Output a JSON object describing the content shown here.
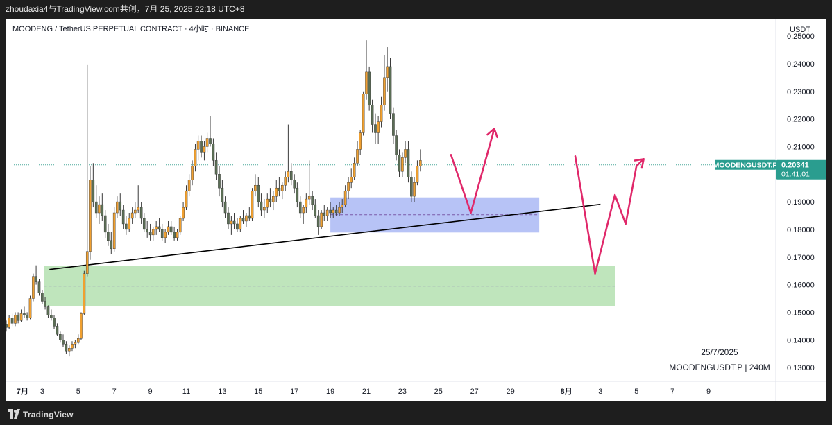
{
  "header": {
    "title": "zhoudaxia4与TradingView.com共创，7月 25, 2025 22:18 UTC+8"
  },
  "footer": {
    "brand": "TradingView"
  },
  "chart_data": {
    "type": "candlestick",
    "title": "MOODENG / TetherUS PERPETUAL CONTRACT · 4小时 · BINANCE",
    "price_unit": "USDT",
    "ylim": [
      0.125,
      0.2563
    ],
    "y_ticks": [
      "0.25000",
      "0.24000",
      "0.23000",
      "0.22000",
      "0.21000",
      "0.20000",
      "0.19000",
      "0.18000",
      "0.17000",
      "0.16000",
      "0.15000",
      "0.14000",
      "0.13000"
    ],
    "x_ticks": [
      {
        "label": "7月",
        "day": 0.9
      },
      {
        "label": "3",
        "day": 2
      },
      {
        "label": "5",
        "day": 4
      },
      {
        "label": "7",
        "day": 6
      },
      {
        "label": "9",
        "day": 8
      },
      {
        "label": "11",
        "day": 10
      },
      {
        "label": "13",
        "day": 12
      },
      {
        "label": "15",
        "day": 14
      },
      {
        "label": "17",
        "day": 16
      },
      {
        "label": "19",
        "day": 18
      },
      {
        "label": "21",
        "day": 20
      },
      {
        "label": "23",
        "day": 22
      },
      {
        "label": "25",
        "day": 24
      },
      {
        "label": "27",
        "day": 26
      },
      {
        "label": "29",
        "day": 28
      },
      {
        "label": "8月",
        "day": 31.1
      },
      {
        "label": "3",
        "day": 33
      },
      {
        "label": "5",
        "day": 35
      },
      {
        "label": "7",
        "day": 37
      },
      {
        "label": "9",
        "day": 39
      }
    ],
    "price_label": {
      "symbol": "MOODENGUSDT.P",
      "price": "0.20341",
      "countdown": "01:41:01",
      "value": 0.2034
    },
    "watermark": {
      "date": "25/7/2025",
      "symbol_tf": "MOODENGUSDT.P | 240M"
    },
    "colors": {
      "up": "#f0a030",
      "down": "#5b6e55",
      "wick": "#3a3a3a",
      "arrow": "#e0286a",
      "blue_zone": "#aab8f5",
      "green_zone": "#b4e0b0",
      "price_tag": "#2a9d8f",
      "dotted": "#4aa89a"
    },
    "zones": [
      {
        "name": "blue",
        "day_from": 18.0,
        "day_to": 29.6,
        "price_top": 0.1916,
        "price_bottom": 0.1789,
        "mid": 0.1853
      },
      {
        "name": "green",
        "day_from": 2.1,
        "day_to": 33.8,
        "price_top": 0.1668,
        "price_bottom": 0.1522,
        "mid": 0.1595
      }
    ],
    "trendline": {
      "day_from": 2.4,
      "price_from": 0.1655,
      "day_to": 33.0,
      "price_to": 0.1891
    },
    "arrows": [
      {
        "points": [
          [
            24.7,
            0.207
          ],
          [
            25.8,
            0.186
          ],
          [
            27.0,
            0.214
          ],
          [
            27.1,
            0.2165
          ]
        ]
      },
      {
        "points": [
          [
            31.6,
            0.2065
          ],
          [
            32.7,
            0.164
          ],
          [
            33.8,
            0.1925
          ],
          [
            34.4,
            0.182
          ],
          [
            35.0,
            0.203
          ],
          [
            35.4,
            0.2055
          ]
        ]
      }
    ],
    "candles": [
      [
        0.0,
        0.1455,
        0.147,
        0.143,
        0.1445
      ],
      [
        0.16,
        0.1445,
        0.149,
        0.144,
        0.148
      ],
      [
        0.33,
        0.148,
        0.1495,
        0.145,
        0.146
      ],
      [
        0.5,
        0.146,
        0.15,
        0.145,
        0.149
      ],
      [
        0.66,
        0.149,
        0.15,
        0.146,
        0.147
      ],
      [
        0.83,
        0.147,
        0.151,
        0.1465,
        0.1495
      ],
      [
        1.0,
        0.1495,
        0.152,
        0.148,
        0.149
      ],
      [
        1.16,
        0.149,
        0.15,
        0.147,
        0.148
      ],
      [
        1.33,
        0.148,
        0.156,
        0.1475,
        0.155
      ],
      [
        1.5,
        0.155,
        0.164,
        0.154,
        0.163
      ],
      [
        1.66,
        0.163,
        0.167,
        0.16,
        0.161
      ],
      [
        1.83,
        0.161,
        0.162,
        0.156,
        0.157
      ],
      [
        2.0,
        0.157,
        0.158,
        0.153,
        0.154
      ],
      [
        2.16,
        0.154,
        0.1555,
        0.151,
        0.152
      ],
      [
        2.33,
        0.152,
        0.1525,
        0.148,
        0.149
      ],
      [
        2.5,
        0.149,
        0.151,
        0.147,
        0.148
      ],
      [
        2.66,
        0.148,
        0.149,
        0.144,
        0.145
      ],
      [
        2.83,
        0.145,
        0.146,
        0.1415,
        0.142
      ],
      [
        3.0,
        0.142,
        0.143,
        0.139,
        0.14
      ],
      [
        3.16,
        0.14,
        0.142,
        0.1375,
        0.1385
      ],
      [
        3.33,
        0.1385,
        0.1395,
        0.135,
        0.136
      ],
      [
        3.5,
        0.136,
        0.138,
        0.134,
        0.137
      ],
      [
        3.66,
        0.137,
        0.1395,
        0.136,
        0.1385
      ],
      [
        3.83,
        0.1385,
        0.14,
        0.137,
        0.139
      ],
      [
        4.0,
        0.139,
        0.142,
        0.1385,
        0.1405
      ],
      [
        4.16,
        0.1405,
        0.15,
        0.14,
        0.1495
      ],
      [
        4.33,
        0.1495,
        0.165,
        0.149,
        0.164
      ],
      [
        4.5,
        0.164,
        0.2395,
        0.163,
        0.172
      ],
      [
        4.66,
        0.172,
        0.203,
        0.169,
        0.198
      ],
      [
        4.83,
        0.198,
        0.204,
        0.188,
        0.19
      ],
      [
        5.0,
        0.19,
        0.196,
        0.184,
        0.186
      ],
      [
        5.16,
        0.186,
        0.192,
        0.182,
        0.189
      ],
      [
        5.33,
        0.189,
        0.193,
        0.183,
        0.185
      ],
      [
        5.5,
        0.185,
        0.187,
        0.177,
        0.179
      ],
      [
        5.66,
        0.179,
        0.182,
        0.174,
        0.176
      ],
      [
        5.83,
        0.176,
        0.179,
        0.171,
        0.173
      ],
      [
        6.0,
        0.173,
        0.188,
        0.172,
        0.186
      ],
      [
        6.16,
        0.186,
        0.192,
        0.184,
        0.19
      ],
      [
        6.33,
        0.19,
        0.193,
        0.185,
        0.187
      ],
      [
        6.5,
        0.187,
        0.189,
        0.18,
        0.182
      ],
      [
        6.66,
        0.182,
        0.185,
        0.178,
        0.18
      ],
      [
        6.83,
        0.18,
        0.186,
        0.179,
        0.184
      ],
      [
        7.0,
        0.184,
        0.188,
        0.182,
        0.186
      ],
      [
        7.16,
        0.186,
        0.19,
        0.184,
        0.187
      ],
      [
        7.33,
        0.187,
        0.196,
        0.186,
        0.188
      ],
      [
        7.5,
        0.188,
        0.19,
        0.182,
        0.184
      ],
      [
        7.66,
        0.184,
        0.186,
        0.179,
        0.18
      ],
      [
        7.83,
        0.18,
        0.183,
        0.177,
        0.179
      ],
      [
        8.0,
        0.179,
        0.182,
        0.176,
        0.178
      ],
      [
        8.16,
        0.178,
        0.181,
        0.176,
        0.18
      ],
      [
        8.33,
        0.18,
        0.183,
        0.178,
        0.181
      ],
      [
        8.5,
        0.181,
        0.184,
        0.179,
        0.18
      ],
      [
        8.66,
        0.18,
        0.182,
        0.176,
        0.177
      ],
      [
        8.83,
        0.177,
        0.18,
        0.175,
        0.179
      ],
      [
        9.0,
        0.179,
        0.183,
        0.178,
        0.181
      ],
      [
        9.16,
        0.181,
        0.183,
        0.178,
        0.179
      ],
      [
        9.33,
        0.179,
        0.181,
        0.176,
        0.177
      ],
      [
        9.5,
        0.177,
        0.18,
        0.176,
        0.179
      ],
      [
        9.66,
        0.179,
        0.185,
        0.178,
        0.184
      ],
      [
        9.83,
        0.184,
        0.19,
        0.183,
        0.188
      ],
      [
        10.0,
        0.188,
        0.196,
        0.187,
        0.194
      ],
      [
        10.16,
        0.194,
        0.2,
        0.192,
        0.198
      ],
      [
        10.33,
        0.198,
        0.205,
        0.196,
        0.203
      ],
      [
        10.5,
        0.203,
        0.211,
        0.201,
        0.209
      ],
      [
        10.66,
        0.209,
        0.214,
        0.205,
        0.212
      ],
      [
        10.83,
        0.212,
        0.214,
        0.206,
        0.208
      ],
      [
        11.0,
        0.208,
        0.212,
        0.205,
        0.21
      ],
      [
        11.16,
        0.21,
        0.215,
        0.208,
        0.213
      ],
      [
        11.33,
        0.213,
        0.221,
        0.21,
        0.211
      ],
      [
        11.5,
        0.211,
        0.213,
        0.203,
        0.205
      ],
      [
        11.66,
        0.205,
        0.208,
        0.198,
        0.2
      ],
      [
        11.83,
        0.2,
        0.203,
        0.192,
        0.195
      ],
      [
        12.0,
        0.195,
        0.198,
        0.188,
        0.19
      ],
      [
        12.16,
        0.19,
        0.192,
        0.184,
        0.186
      ],
      [
        12.33,
        0.186,
        0.188,
        0.18,
        0.182
      ],
      [
        12.5,
        0.182,
        0.185,
        0.178,
        0.183
      ],
      [
        12.66,
        0.183,
        0.186,
        0.18,
        0.182
      ],
      [
        12.83,
        0.182,
        0.184,
        0.179,
        0.18
      ],
      [
        13.0,
        0.18,
        0.185,
        0.179,
        0.184
      ],
      [
        13.16,
        0.184,
        0.187,
        0.182,
        0.183
      ],
      [
        13.33,
        0.183,
        0.186,
        0.181,
        0.185
      ],
      [
        13.5,
        0.185,
        0.188,
        0.183,
        0.184
      ],
      [
        13.66,
        0.184,
        0.195,
        0.183,
        0.194
      ],
      [
        13.83,
        0.194,
        0.2,
        0.192,
        0.196
      ],
      [
        14.0,
        0.196,
        0.199,
        0.188,
        0.19
      ],
      [
        14.16,
        0.19,
        0.193,
        0.185,
        0.187
      ],
      [
        14.33,
        0.187,
        0.191,
        0.184,
        0.188
      ],
      [
        14.5,
        0.188,
        0.193,
        0.186,
        0.191
      ],
      [
        14.66,
        0.191,
        0.195,
        0.188,
        0.19
      ],
      [
        14.83,
        0.19,
        0.194,
        0.187,
        0.192
      ],
      [
        15.0,
        0.192,
        0.198,
        0.19,
        0.195
      ],
      [
        15.16,
        0.195,
        0.199,
        0.192,
        0.194
      ],
      [
        15.33,
        0.194,
        0.197,
        0.191,
        0.196
      ],
      [
        15.5,
        0.196,
        0.201,
        0.194,
        0.199
      ],
      [
        15.66,
        0.199,
        0.218,
        0.197,
        0.201
      ],
      [
        15.83,
        0.201,
        0.204,
        0.196,
        0.198
      ],
      [
        16.0,
        0.198,
        0.2,
        0.193,
        0.195
      ],
      [
        16.16,
        0.195,
        0.197,
        0.188,
        0.19
      ],
      [
        16.33,
        0.19,
        0.192,
        0.184,
        0.186
      ],
      [
        16.5,
        0.186,
        0.189,
        0.182,
        0.188
      ],
      [
        16.66,
        0.188,
        0.193,
        0.186,
        0.191
      ],
      [
        16.83,
        0.191,
        0.205,
        0.189,
        0.192
      ],
      [
        17.0,
        0.192,
        0.194,
        0.187,
        0.189
      ],
      [
        17.16,
        0.189,
        0.191,
        0.184,
        0.185
      ],
      [
        17.33,
        0.185,
        0.187,
        0.178,
        0.181
      ],
      [
        17.5,
        0.181,
        0.187,
        0.18,
        0.186
      ],
      [
        17.66,
        0.186,
        0.189,
        0.183,
        0.185
      ],
      [
        17.83,
        0.185,
        0.188,
        0.183,
        0.187
      ],
      [
        18.0,
        0.187,
        0.19,
        0.184,
        0.186
      ],
      [
        18.16,
        0.186,
        0.188,
        0.184,
        0.187
      ],
      [
        18.33,
        0.187,
        0.189,
        0.185,
        0.186
      ],
      [
        18.5,
        0.186,
        0.19,
        0.185,
        0.188
      ],
      [
        18.66,
        0.188,
        0.191,
        0.186,
        0.189
      ],
      [
        18.83,
        0.189,
        0.196,
        0.188,
        0.194
      ],
      [
        19.0,
        0.194,
        0.199,
        0.191,
        0.197
      ],
      [
        19.16,
        0.197,
        0.202,
        0.195,
        0.199
      ],
      [
        19.33,
        0.199,
        0.206,
        0.198,
        0.204
      ],
      [
        19.5,
        0.204,
        0.212,
        0.203,
        0.209
      ],
      [
        19.66,
        0.209,
        0.216,
        0.207,
        0.215
      ],
      [
        19.83,
        0.215,
        0.23,
        0.214,
        0.229
      ],
      [
        20.0,
        0.229,
        0.2485,
        0.227,
        0.237
      ],
      [
        20.16,
        0.237,
        0.239,
        0.223,
        0.225
      ],
      [
        20.33,
        0.225,
        0.227,
        0.215,
        0.218
      ],
      [
        20.5,
        0.218,
        0.222,
        0.211,
        0.215
      ],
      [
        20.66,
        0.215,
        0.221,
        0.211,
        0.219
      ],
      [
        20.83,
        0.219,
        0.228,
        0.217,
        0.225
      ],
      [
        21.0,
        0.225,
        0.243,
        0.223,
        0.235
      ],
      [
        21.16,
        0.235,
        0.246,
        0.23,
        0.239
      ],
      [
        21.33,
        0.239,
        0.242,
        0.22,
        0.222
      ],
      [
        21.5,
        0.222,
        0.224,
        0.211,
        0.214
      ],
      [
        21.66,
        0.214,
        0.216,
        0.205,
        0.207
      ],
      [
        21.83,
        0.207,
        0.209,
        0.199,
        0.201
      ],
      [
        22.0,
        0.201,
        0.208,
        0.199,
        0.206
      ],
      [
        22.16,
        0.206,
        0.212,
        0.204,
        0.209
      ],
      [
        22.33,
        0.209,
        0.212,
        0.197,
        0.199
      ],
      [
        22.5,
        0.199,
        0.201,
        0.19,
        0.192
      ],
      [
        22.66,
        0.192,
        0.199,
        0.19,
        0.197
      ],
      [
        22.83,
        0.197,
        0.205,
        0.196,
        0.203
      ],
      [
        23.0,
        0.203,
        0.209,
        0.201,
        0.205
      ]
    ]
  }
}
